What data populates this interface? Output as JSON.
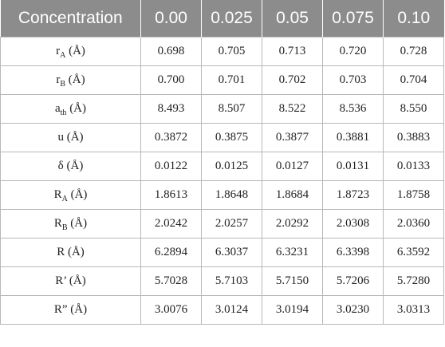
{
  "table": {
    "header": [
      "Concentration",
      "0.00",
      "0.025",
      "0.05",
      "0.075",
      "0.10"
    ],
    "rows": [
      {
        "label": {
          "main": "r",
          "sub": "A",
          "unit": " (Å)"
        },
        "values": [
          "0.698",
          "0.705",
          "0.713",
          "0.720",
          "0.728"
        ]
      },
      {
        "label": {
          "main": "r",
          "sub": "B",
          "unit": " (Å)"
        },
        "values": [
          "0.700",
          "0.701",
          "0.702",
          "0.703",
          "0.704"
        ]
      },
      {
        "label": {
          "main": "a",
          "sub": "th",
          "unit": " (Å)"
        },
        "values": [
          "8.493",
          "8.507",
          "8.522",
          "8.536",
          "8.550"
        ]
      },
      {
        "label": {
          "main": "u",
          "sub": "",
          "unit": " (Å)"
        },
        "values": [
          "0.3872",
          "0.3875",
          "0.3877",
          "0.3881",
          "0.3883"
        ]
      },
      {
        "label": {
          "main": "δ",
          "sub": "",
          "unit": " (Å)"
        },
        "values": [
          "0.0122",
          "0.0125",
          "0.0127",
          "0.0131",
          "0.0133"
        ]
      },
      {
        "label": {
          "main": "R",
          "sub": "A",
          "unit": " (Å)"
        },
        "values": [
          "1.8613",
          "1.8648",
          "1.8684",
          "1.8723",
          "1.8758"
        ]
      },
      {
        "label": {
          "main": "R",
          "sub": "B",
          "unit": " (Å)"
        },
        "values": [
          "2.0242",
          "2.0257",
          "2.0292",
          "2.0308",
          "2.0360"
        ]
      },
      {
        "label": {
          "main": "R",
          "sub": "",
          "unit": " (Å)"
        },
        "values": [
          "6.2894",
          "6.3037",
          "6.3231",
          "6.3398",
          "6.3592"
        ]
      },
      {
        "label": {
          "main": "R’",
          "sub": "",
          "unit": " (Å)"
        },
        "values": [
          "5.7028",
          "5.7103",
          "5.7150",
          "5.7206",
          "5.7280"
        ]
      },
      {
        "label": {
          "main": "R”",
          "sub": "",
          "unit": " (Å)"
        },
        "values": [
          "3.0076",
          "3.0124",
          "3.0194",
          "3.0230",
          "3.0313"
        ]
      }
    ]
  },
  "colors": {
    "header_bg": "#8c8c8c",
    "header_text": "#ffffff",
    "grid": "#b8b8b8"
  }
}
